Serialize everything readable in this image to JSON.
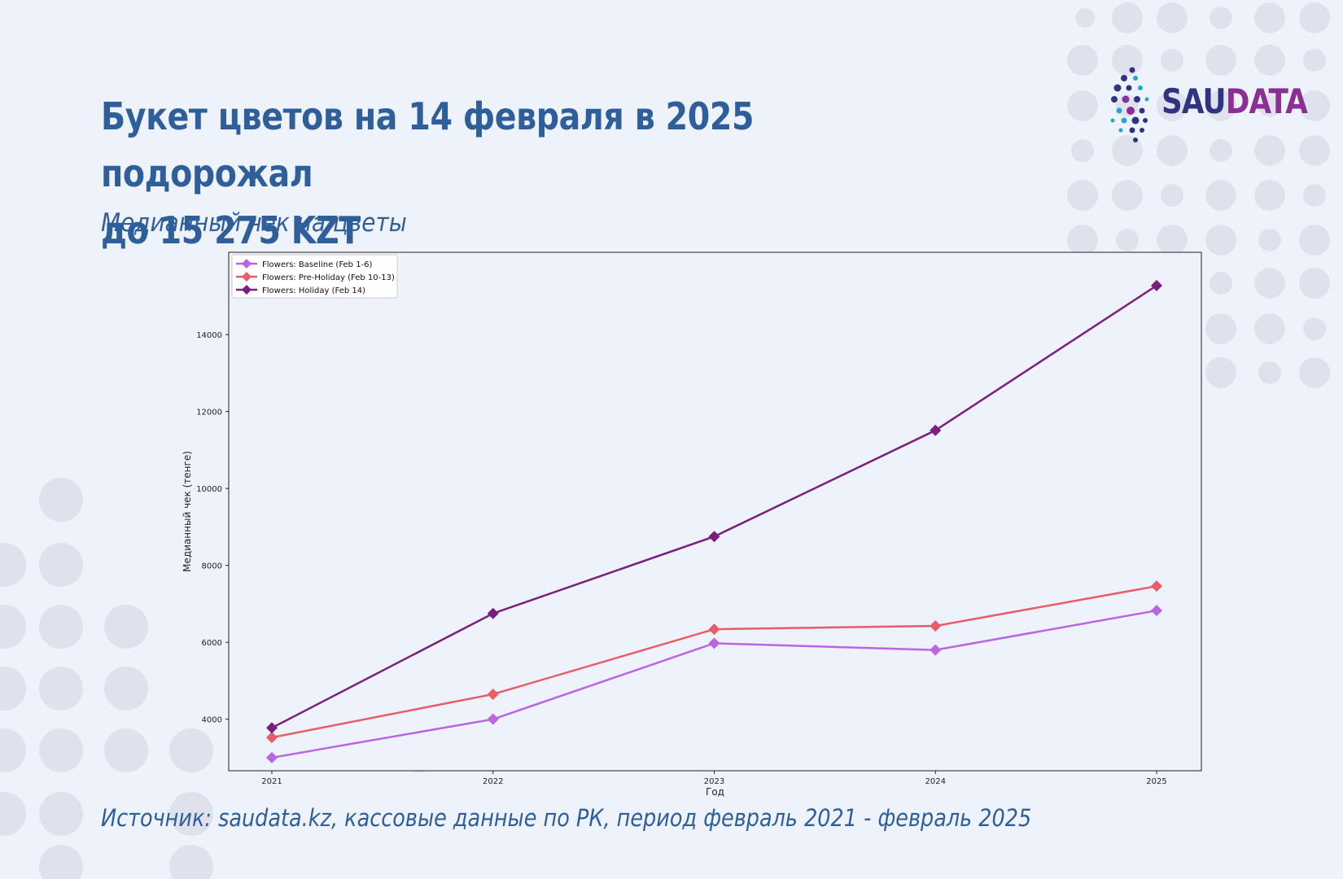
{
  "header": {
    "title_line1": "Букет цветов на 14 февраля в 2025 подорожал",
    "title_line2": "до 15 275 KZT",
    "subtitle": "Медианный чек на цветы"
  },
  "logo": {
    "part1": "SAU",
    "part2": "DATA"
  },
  "footer": {
    "source": "Источник: saudata.kz, кассовые данные по РК, период февраль 2021 - февраль 2025"
  },
  "colors": {
    "text": "#2f5f9a",
    "baseline": "#b865e6",
    "preholiday": "#e85d6a",
    "holiday": "#7b1f7e",
    "dots": "#dfe2ec"
  },
  "chart_data": {
    "type": "line",
    "x": [
      2021,
      2022,
      2023,
      2024,
      2025
    ],
    "xtick_labels": [
      "2021",
      "2022",
      "2023",
      "2024",
      "2025"
    ],
    "xlabel": "Год",
    "ylabel": "Медианный чек (тенге)",
    "ylim": [
      2660,
      16140
    ],
    "yticks": [
      4000,
      6000,
      8000,
      10000,
      12000,
      14000
    ],
    "legend_position": "top-left",
    "grid": false,
    "series": [
      {
        "name": "Flowers: Baseline (Feb 1-6)",
        "color": "#b865e6",
        "values": [
          3000,
          4000,
          5975,
          5800,
          6825
        ]
      },
      {
        "name": "Flowers: Pre-Holiday (Feb 10-13)",
        "color": "#e85d6a",
        "values": [
          3525,
          4650,
          6340,
          6425,
          7460
        ]
      },
      {
        "name": "Flowers: Holiday (Feb 14)",
        "color": "#7b1f7e",
        "values": [
          3775,
          6750,
          8750,
          11510,
          15275
        ]
      }
    ]
  }
}
